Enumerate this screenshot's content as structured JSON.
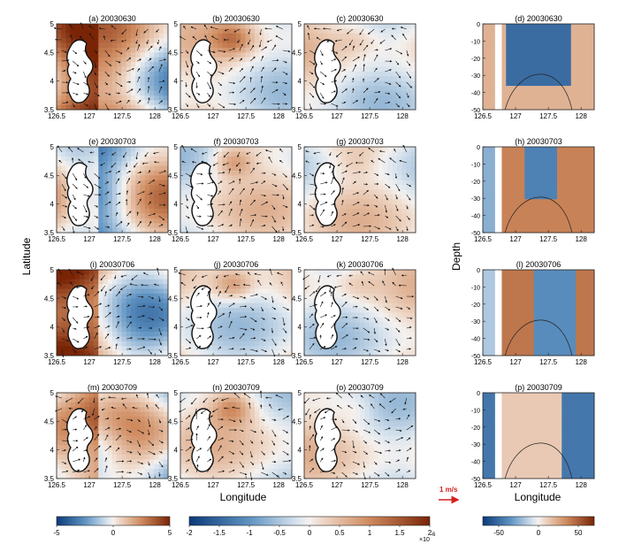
{
  "figure": {
    "ylabel_left": "Latitude",
    "ylabel_right": "Depth",
    "xlabel_maps": "Longitude",
    "xlabel_sections": "Longitude",
    "scale_arrow_label": "1 m/s",
    "colorbar_multiplier": "×10",
    "colorbar_exponent": "-6"
  },
  "chart_data": {
    "type": "heatmap",
    "rows": [
      {
        "date": "20030630",
        "panels": [
          "(a) 20030630",
          "(b) 20030630",
          "(c) 20030630",
          "(d) 20030630"
        ]
      },
      {
        "date": "20030703",
        "panels": [
          "(e) 20030703",
          "(f) 20030703",
          "(g) 20030703",
          "(h) 20030703"
        ]
      },
      {
        "date": "20030706",
        "panels": [
          "(i) 20030706",
          "(j) 20030706",
          "(k) 20030706",
          "(l) 20030706"
        ]
      },
      {
        "date": "20030709",
        "panels": [
          "(m) 20030709",
          "(n) 20030709",
          "(o) 20030709",
          "(p) 20030709"
        ]
      }
    ],
    "map_x_ticks": [
      "126.5",
      "127",
      "127.5",
      "128"
    ],
    "map_y_ticks": [
      "3.5",
      "4",
      "4.5",
      "5"
    ],
    "section_x_ticks": [
      "126.5",
      "127",
      "127.5",
      "128"
    ],
    "section_y_ticks": [
      "0",
      "-10",
      "-20",
      "-30",
      "-40",
      "-50"
    ],
    "xlim": [
      126.5,
      128.2
    ],
    "ylim_map": [
      3.5,
      5.0
    ],
    "ylim_section": [
      -50,
      0
    ],
    "colorbars": [
      {
        "ticks": [
          "-5",
          "0",
          "5"
        ],
        "range": [
          -5,
          5
        ]
      },
      {
        "ticks": [
          "-2",
          "-1.5",
          "-1",
          "-0.5",
          "0",
          "0.5",
          "1",
          "1.5",
          "2"
        ],
        "range": [
          -2,
          2
        ]
      },
      {
        "ticks": [
          "-50",
          "0",
          "50"
        ],
        "range": [
          -70,
          70
        ]
      }
    ],
    "colors": {
      "negative": "#1f4e8c",
      "neutral": "#f4f1ef",
      "positive": "#8a2a0c"
    }
  }
}
